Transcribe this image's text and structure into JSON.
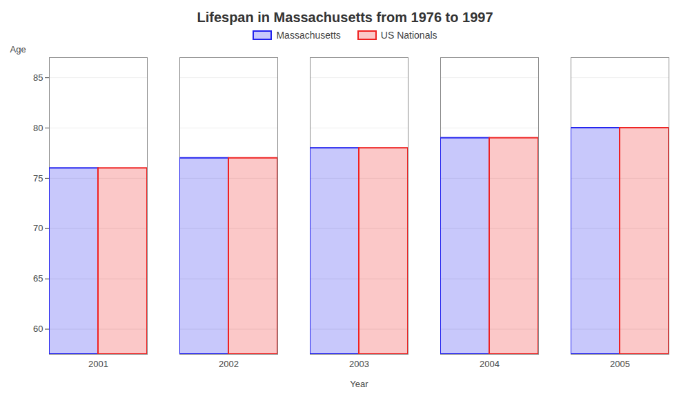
{
  "chart_data": {
    "type": "bar",
    "title": "Lifespan in Massachusetts from 1976 to 1997",
    "xlabel": "Year",
    "ylabel": "Age",
    "categories": [
      "2001",
      "2002",
      "2003",
      "2004",
      "2005"
    ],
    "series": [
      {
        "name": "Massachusetts",
        "color": "#2222ee",
        "values": [
          76,
          77,
          78,
          79,
          80
        ]
      },
      {
        "name": "US Nationals",
        "color": "#ee2222",
        "values": [
          76,
          77,
          78,
          79,
          80
        ]
      }
    ],
    "ylim": [
      57.5,
      87
    ],
    "yticks": [
      60,
      65,
      70,
      75,
      80,
      85
    ],
    "grid": true,
    "legend": "top"
  }
}
